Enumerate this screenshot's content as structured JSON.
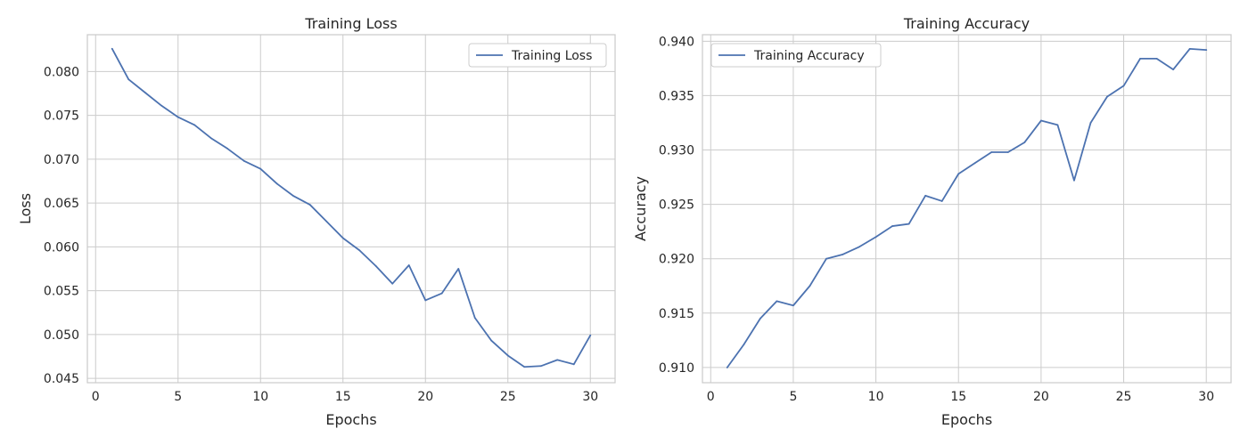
{
  "colors": {
    "series": "#4c72b0",
    "grid": "#cccccc",
    "text": "#262626"
  },
  "chart_data": [
    {
      "type": "line",
      "title": "Training Loss",
      "xlabel": "Epochs",
      "ylabel": "Loss",
      "xlim": [
        -0.5,
        31.5
      ],
      "ylim": [
        0.0445,
        0.0842
      ],
      "xticks": [
        0,
        5,
        10,
        15,
        20,
        25,
        30
      ],
      "xtick_labels": [
        "0",
        "5",
        "10",
        "15",
        "20",
        "25",
        "30"
      ],
      "yticks": [
        0.045,
        0.05,
        0.055,
        0.06,
        0.065,
        0.07,
        0.075,
        0.08
      ],
      "ytick_labels": [
        "0.045",
        "0.050",
        "0.055",
        "0.060",
        "0.065",
        "0.070",
        "0.075",
        "0.080"
      ],
      "grid": true,
      "legend_position": "top-right",
      "x": [
        1,
        2,
        3,
        4,
        5,
        6,
        7,
        8,
        9,
        10,
        11,
        12,
        13,
        14,
        15,
        16,
        17,
        18,
        19,
        20,
        21,
        22,
        23,
        24,
        25,
        26,
        27,
        28,
        29,
        30
      ],
      "series": [
        {
          "name": "Training Loss",
          "values": [
            0.0826,
            0.0791,
            0.0776,
            0.0761,
            0.0748,
            0.0739,
            0.0724,
            0.0712,
            0.0698,
            0.0689,
            0.0672,
            0.0658,
            0.0648,
            0.0629,
            0.061,
            0.0596,
            0.0578,
            0.0558,
            0.0579,
            0.0539,
            0.0547,
            0.0575,
            0.0519,
            0.0493,
            0.0476,
            0.0463,
            0.0464,
            0.0471,
            0.0466,
            0.0499
          ]
        }
      ]
    },
    {
      "type": "line",
      "title": "Training Accuracy",
      "xlabel": "Epochs",
      "ylabel": "Accuracy",
      "xlim": [
        -0.5,
        31.5
      ],
      "ylim": [
        0.9086,
        0.9406
      ],
      "xticks": [
        0,
        5,
        10,
        15,
        20,
        25,
        30
      ],
      "xtick_labels": [
        "0",
        "5",
        "10",
        "15",
        "20",
        "25",
        "30"
      ],
      "yticks": [
        0.91,
        0.915,
        0.92,
        0.925,
        0.93,
        0.935,
        0.94
      ],
      "ytick_labels": [
        "0.910",
        "0.915",
        "0.920",
        "0.925",
        "0.930",
        "0.935",
        "0.940"
      ],
      "grid": true,
      "legend_position": "top-left",
      "x": [
        1,
        2,
        3,
        4,
        5,
        6,
        7,
        8,
        9,
        10,
        11,
        12,
        13,
        14,
        15,
        16,
        17,
        18,
        19,
        20,
        21,
        22,
        23,
        24,
        25,
        26,
        27,
        28,
        29,
        30
      ],
      "series": [
        {
          "name": "Training Accuracy",
          "values": [
            0.91,
            0.9121,
            0.9145,
            0.9161,
            0.9157,
            0.9175,
            0.92,
            0.9204,
            0.9211,
            0.922,
            0.923,
            0.9232,
            0.9258,
            0.9253,
            0.9278,
            0.9288,
            0.9298,
            0.9298,
            0.9307,
            0.9327,
            0.9323,
            0.9272,
            0.9325,
            0.9349,
            0.9359,
            0.9384,
            0.9384,
            0.9374,
            0.9393,
            0.9392
          ]
        }
      ]
    }
  ]
}
